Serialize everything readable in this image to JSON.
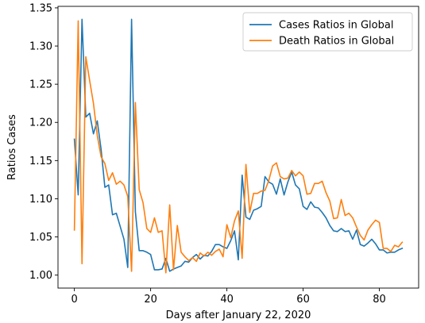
{
  "chart_data": {
    "type": "line",
    "xlabel": "Days after January 22, 2020",
    "ylabel": "Ratios Cases",
    "xlim": [
      -4.3,
      90.3
    ],
    "ylim": [
      0.983,
      1.352
    ],
    "xticks": [
      0,
      20,
      40,
      60,
      80
    ],
    "yticks": [
      1.0,
      1.05,
      1.1,
      1.15,
      1.2,
      1.25,
      1.3,
      1.35
    ],
    "ytick_labels": [
      "1.00",
      "1.05",
      "1.10",
      "1.15",
      "1.20",
      "1.25",
      "1.30",
      "1.35"
    ],
    "legend_position": "upper right",
    "grid": false,
    "series": [
      {
        "name": "Cases Ratios in Global",
        "color": "#1f77b4",
        "x": [
          0,
          1,
          2,
          3,
          4,
          5,
          6,
          7,
          8,
          9,
          10,
          11,
          12,
          13,
          14,
          15,
          16,
          17,
          18,
          19,
          20,
          21,
          22,
          23,
          24,
          25,
          26,
          27,
          28,
          29,
          30,
          31,
          32,
          33,
          34,
          35,
          36,
          37,
          38,
          39,
          40,
          41,
          42,
          43,
          44,
          45,
          46,
          47,
          48,
          49,
          50,
          51,
          52,
          53,
          54,
          55,
          56,
          57,
          58,
          59,
          60,
          61,
          62,
          63,
          64,
          65,
          66,
          67,
          68,
          69,
          70,
          71,
          72,
          73,
          74,
          75,
          76,
          77,
          78,
          79,
          80,
          81,
          82,
          83,
          84,
          85,
          86
        ],
        "y": [
          1.178,
          1.105,
          1.335,
          1.207,
          1.212,
          1.185,
          1.202,
          1.165,
          1.115,
          1.118,
          1.079,
          1.081,
          1.064,
          1.047,
          1.01,
          1.335,
          1.083,
          1.032,
          1.032,
          1.03,
          1.027,
          1.007,
          1.007,
          1.008,
          1.022,
          1.005,
          1.008,
          1.01,
          1.012,
          1.018,
          1.017,
          1.023,
          1.027,
          1.021,
          1.026,
          1.025,
          1.031,
          1.04,
          1.04,
          1.037,
          1.035,
          1.045,
          1.058,
          1.02,
          1.131,
          1.076,
          1.073,
          1.085,
          1.087,
          1.09,
          1.129,
          1.122,
          1.119,
          1.106,
          1.126,
          1.105,
          1.122,
          1.135,
          1.118,
          1.113,
          1.09,
          1.086,
          1.096,
          1.089,
          1.088,
          1.082,
          1.075,
          1.065,
          1.058,
          1.057,
          1.061,
          1.057,
          1.058,
          1.047,
          1.059,
          1.04,
          1.038,
          1.042,
          1.047,
          1.041,
          1.033,
          1.033,
          1.029,
          1.03,
          1.03,
          1.033,
          1.035
        ]
      },
      {
        "name": "Death Ratios in Global",
        "color": "#ff7f0e",
        "x": [
          0,
          1,
          2,
          3,
          4,
          5,
          6,
          7,
          8,
          9,
          10,
          11,
          12,
          13,
          14,
          15,
          16,
          17,
          18,
          19,
          20,
          21,
          22,
          23,
          24,
          25,
          26,
          27,
          28,
          29,
          30,
          31,
          32,
          33,
          34,
          35,
          36,
          37,
          38,
          39,
          40,
          41,
          42,
          43,
          44,
          45,
          46,
          47,
          48,
          49,
          50,
          51,
          52,
          53,
          54,
          55,
          56,
          57,
          58,
          59,
          60,
          61,
          62,
          63,
          64,
          65,
          66,
          67,
          68,
          69,
          70,
          71,
          72,
          73,
          74,
          75,
          76,
          77,
          78,
          79,
          80,
          81,
          82,
          83,
          84,
          85,
          86
        ],
        "y": [
          1.059,
          1.333,
          1.015,
          1.286,
          1.255,
          1.225,
          1.183,
          1.155,
          1.146,
          1.124,
          1.134,
          1.119,
          1.123,
          1.118,
          1.103,
          1.005,
          1.226,
          1.112,
          1.095,
          1.061,
          1.056,
          1.075,
          1.056,
          1.058,
          1.003,
          1.092,
          1.007,
          1.065,
          1.03,
          1.024,
          1.019,
          1.023,
          1.018,
          1.029,
          1.025,
          1.03,
          1.026,
          1.031,
          1.034,
          1.024,
          1.066,
          1.049,
          1.071,
          1.084,
          1.022,
          1.145,
          1.082,
          1.107,
          1.107,
          1.11,
          1.111,
          1.124,
          1.143,
          1.147,
          1.129,
          1.126,
          1.127,
          1.137,
          1.13,
          1.135,
          1.13,
          1.106,
          1.107,
          1.12,
          1.12,
          1.123,
          1.108,
          1.097,
          1.074,
          1.075,
          1.099,
          1.078,
          1.081,
          1.075,
          1.063,
          1.052,
          1.046,
          1.059,
          1.066,
          1.072,
          1.069,
          1.035,
          1.035,
          1.031,
          1.039,
          1.037,
          1.043
        ]
      }
    ]
  }
}
